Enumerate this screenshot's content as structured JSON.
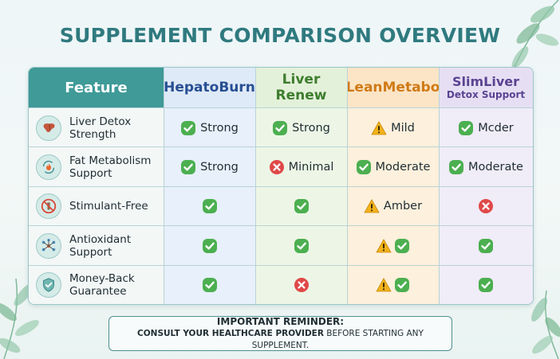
{
  "title": "SUPPLEMENT COMPARISON OVERVIEW",
  "header": {
    "feature": "Feature",
    "products": [
      {
        "name": "HepatoBurn",
        "sub": "",
        "color": "#274f92"
      },
      {
        "name": "Liver Renew",
        "sub": "",
        "color": "#3d7d2e"
      },
      {
        "name": "LeanMetabo",
        "sub": "",
        "color": "#d07a16"
      },
      {
        "name": "SlimLiver",
        "sub": "Detox Support",
        "color": "#5a4391"
      }
    ]
  },
  "rows": [
    {
      "feature": "Liver Detox Strength",
      "icon": "liver-icon",
      "cells": [
        {
          "symbol": "check",
          "text": "Strong"
        },
        {
          "symbol": "check",
          "text": "Strong"
        },
        {
          "symbol": "warning",
          "text": "Mild"
        },
        {
          "symbol": "check",
          "text": "Mcder"
        }
      ]
    },
    {
      "feature": "Fat Metabolism Support",
      "icon": "flame-cycle-icon",
      "cells": [
        {
          "symbol": "check",
          "text": "Strong"
        },
        {
          "symbol": "cross",
          "text": "Minimal"
        },
        {
          "symbol": "check",
          "text": "Moderate"
        },
        {
          "symbol": "check",
          "text": "Moderate"
        }
      ]
    },
    {
      "feature": "Stimulant-Free",
      "icon": "no-stimulant-icon",
      "cells": [
        {
          "symbol": "check",
          "text": ""
        },
        {
          "symbol": "check",
          "text": ""
        },
        {
          "symbol": "warning",
          "text": "Amber"
        },
        {
          "symbol": "cross",
          "text": ""
        }
      ]
    },
    {
      "feature": "Antioxidant Support",
      "icon": "molecule-icon",
      "cells": [
        {
          "symbol": "check",
          "text": ""
        },
        {
          "symbol": "check",
          "text": ""
        },
        {
          "symbol": "warning-check",
          "text": ""
        },
        {
          "symbol": "check",
          "text": ""
        }
      ]
    },
    {
      "feature": "Money-Back Guarantee",
      "icon": "shield-check-icon",
      "cells": [
        {
          "symbol": "check",
          "text": ""
        },
        {
          "symbol": "cross",
          "text": ""
        },
        {
          "symbol": "warning-check",
          "text": ""
        },
        {
          "symbol": "check",
          "text": ""
        }
      ]
    }
  ],
  "reminder": {
    "heading": "IMPORTANT REMINDER:",
    "bold_part": "CONSULT YOUR HEALTHCARE PROVIDER",
    "rest": " BEFORE STARTING ANY SUPPLEMENT."
  },
  "colors": {
    "accent_teal": "#3f9a98",
    "check_green": "#4caf50",
    "warning_amber": "#f2b21b",
    "cross_red": "#e04848"
  }
}
